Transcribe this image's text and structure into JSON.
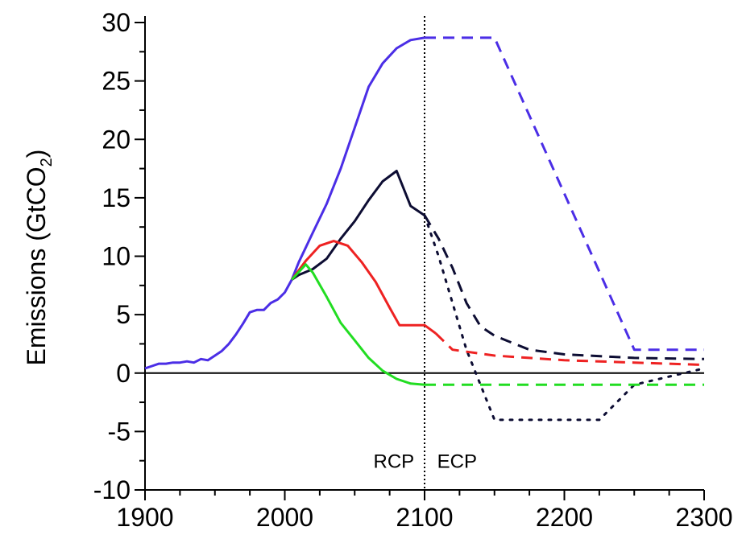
{
  "chart_data": {
    "type": "line",
    "title": "",
    "xlabel": "",
    "ylabel": "Emissions (GtCO",
    "ylabel_subscript": "2",
    "ylabel_suffix": ")",
    "xlim": [
      1900,
      2300
    ],
    "ylim": [
      -10,
      30
    ],
    "x_ticks": [
      1900,
      2000,
      2100,
      2200,
      2300
    ],
    "y_ticks": [
      -10,
      -5,
      0,
      5,
      10,
      15,
      20,
      25,
      30
    ],
    "grid": false,
    "legend": "none",
    "annotations": [
      {
        "text": "RCP",
        "x": 2078,
        "y": -8.1
      },
      {
        "text": "ECP",
        "x": 2109,
        "y": -8.1
      }
    ],
    "divider_x": 2100,
    "series": [
      {
        "color": "#4b2ee6",
        "style": "solid",
        "points": [
          [
            1900,
            0.4
          ],
          [
            1905,
            0.6
          ],
          [
            1910,
            0.8
          ],
          [
            1915,
            0.8
          ],
          [
            1920,
            0.9
          ],
          [
            1925,
            0.9
          ],
          [
            1930,
            1.0
          ],
          [
            1935,
            0.9
          ],
          [
            1940,
            1.2
          ],
          [
            1945,
            1.1
          ],
          [
            1950,
            1.5
          ],
          [
            1955,
            1.9
          ],
          [
            1960,
            2.5
          ],
          [
            1965,
            3.3
          ],
          [
            1970,
            4.2
          ],
          [
            1975,
            5.2
          ],
          [
            1980,
            5.4
          ],
          [
            1985,
            5.4
          ],
          [
            1990,
            6.0
          ],
          [
            1995,
            6.3
          ],
          [
            2000,
            6.9
          ],
          [
            2005,
            8.0
          ]
        ]
      },
      {
        "color": "#4b2ee6",
        "style": "solid",
        "points": [
          [
            2005,
            8.0
          ],
          [
            2010,
            9.5
          ],
          [
            2020,
            12.0
          ],
          [
            2030,
            14.5
          ],
          [
            2040,
            17.5
          ],
          [
            2050,
            21.0
          ],
          [
            2060,
            24.5
          ],
          [
            2070,
            26.5
          ],
          [
            2080,
            27.8
          ],
          [
            2090,
            28.5
          ],
          [
            2100,
            28.7
          ]
        ]
      },
      {
        "color": "#4b2ee6",
        "style": "dashed",
        "points": [
          [
            2100,
            28.7
          ],
          [
            2150,
            28.7
          ],
          [
            2250,
            2.0
          ],
          [
            2300,
            2.0
          ]
        ]
      },
      {
        "color": "#0d0d33",
        "style": "solid",
        "points": [
          [
            2005,
            8.0
          ],
          [
            2010,
            8.4
          ],
          [
            2020,
            8.9
          ],
          [
            2030,
            9.8
          ],
          [
            2040,
            11.5
          ],
          [
            2050,
            13.0
          ],
          [
            2060,
            14.8
          ],
          [
            2070,
            16.4
          ],
          [
            2080,
            17.3
          ],
          [
            2090,
            14.3
          ],
          [
            2100,
            13.5
          ]
        ]
      },
      {
        "color": "#0d0d33",
        "style": "dashed",
        "points": [
          [
            2100,
            13.5
          ],
          [
            2110,
            11.5
          ],
          [
            2120,
            9.0
          ],
          [
            2130,
            6.0
          ],
          [
            2140,
            4.0
          ],
          [
            2150,
            3.2
          ],
          [
            2175,
            2.0
          ],
          [
            2200,
            1.6
          ],
          [
            2250,
            1.3
          ],
          [
            2300,
            1.2
          ]
        ]
      },
      {
        "color": "#0d0d33",
        "style": "dotted",
        "points": [
          [
            2100,
            13.5
          ],
          [
            2110,
            10.0
          ],
          [
            2120,
            6.0
          ],
          [
            2130,
            2.0
          ],
          [
            2140,
            -1.0
          ],
          [
            2150,
            -4.0
          ],
          [
            2225,
            -4.0
          ],
          [
            2250,
            -1.0
          ],
          [
            2300,
            0.4
          ]
        ]
      },
      {
        "color": "#ee2222",
        "style": "solid",
        "points": [
          [
            2005,
            8.0
          ],
          [
            2015,
            9.6
          ],
          [
            2025,
            10.9
          ],
          [
            2035,
            11.3
          ],
          [
            2045,
            10.9
          ],
          [
            2055,
            9.5
          ],
          [
            2065,
            7.8
          ],
          [
            2075,
            5.6
          ],
          [
            2082,
            4.1
          ],
          [
            2100,
            4.1
          ],
          [
            2108,
            3.4
          ]
        ]
      },
      {
        "color": "#ee2222",
        "style": "dashed",
        "points": [
          [
            2108,
            3.4
          ],
          [
            2120,
            2.0
          ],
          [
            2150,
            1.5
          ],
          [
            2200,
            1.1
          ],
          [
            2250,
            0.9
          ],
          [
            2300,
            0.7
          ]
        ]
      },
      {
        "color": "#22dd22",
        "style": "solid",
        "points": [
          [
            2005,
            8.0
          ],
          [
            2015,
            9.3
          ],
          [
            2020,
            8.6
          ],
          [
            2030,
            6.5
          ],
          [
            2040,
            4.3
          ],
          [
            2050,
            2.8
          ],
          [
            2060,
            1.3
          ],
          [
            2070,
            0.2
          ],
          [
            2080,
            -0.5
          ],
          [
            2090,
            -0.9
          ],
          [
            2100,
            -1.0
          ]
        ]
      },
      {
        "color": "#22dd22",
        "style": "dashed",
        "points": [
          [
            2100,
            -1.0
          ],
          [
            2300,
            -1.0
          ]
        ]
      }
    ]
  }
}
